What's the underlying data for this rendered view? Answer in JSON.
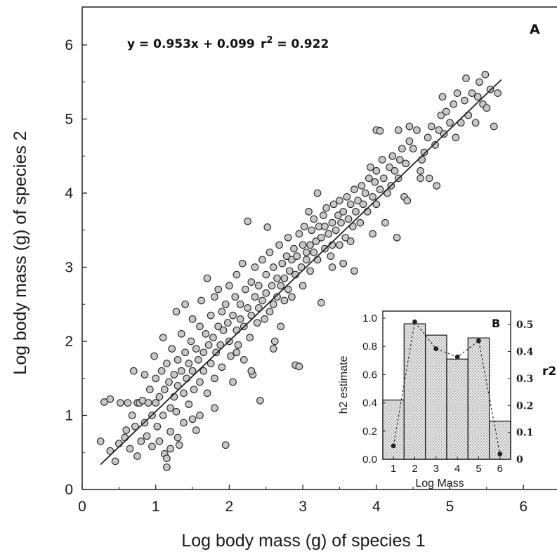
{
  "chart_data": [
    {
      "type": "scatter",
      "panel_label": "A",
      "equation": "y = 0.953x + 0.099",
      "r2_prefix": "r",
      "r2_superscript": "2",
      "r2_value": " = 0.922",
      "xlabel": "Log body mass (g) of species 1",
      "ylabel": "Log body mass (g) of species 2",
      "xlim": [
        0,
        6.5
      ],
      "ylim": [
        0,
        6.5
      ],
      "xticks": [
        0,
        1,
        2,
        3,
        4,
        5,
        6
      ],
      "yticks": [
        0,
        1,
        2,
        3,
        4,
        5,
        6
      ],
      "grid": false,
      "marker_color": "#c8c8c8",
      "marker_edge": "#222222",
      "line_color": "#222222",
      "fit": {
        "slope": 0.953,
        "intercept": 0.099,
        "x_range": [
          0.25,
          5.7
        ]
      },
      "points": [
        [
          0.25,
          0.65
        ],
        [
          0.3,
          1.18
        ],
        [
          0.38,
          0.52
        ],
        [
          0.38,
          1.22
        ],
        [
          0.45,
          0.38
        ],
        [
          0.5,
          0.62
        ],
        [
          0.52,
          1.17
        ],
        [
          0.58,
          0.7
        ],
        [
          0.6,
          0.8
        ],
        [
          0.62,
          1.17
        ],
        [
          0.65,
          0.55
        ],
        [
          0.68,
          1.0
        ],
        [
          0.7,
          1.6
        ],
        [
          0.72,
          0.85
        ],
        [
          0.75,
          1.17
        ],
        [
          0.75,
          0.45
        ],
        [
          0.78,
          1.17
        ],
        [
          0.8,
          0.65
        ],
        [
          0.82,
          1.2
        ],
        [
          0.85,
          0.9
        ],
        [
          0.85,
          1.55
        ],
        [
          0.88,
          0.72
        ],
        [
          0.9,
          1.17
        ],
        [
          0.92,
          1.35
        ],
        [
          0.95,
          1.0
        ],
        [
          0.95,
          0.58
        ],
        [
          0.98,
          1.8
        ],
        [
          1.0,
          1.17
        ],
        [
          1.0,
          1.5
        ],
        [
          1.02,
          0.85
        ],
        [
          1.05,
          1.25
        ],
        [
          1.05,
          0.65
        ],
        [
          1.08,
          1.6
        ],
        [
          1.1,
          2.05
        ],
        [
          1.1,
          1.0
        ],
        [
          1.12,
          1.35
        ],
        [
          1.12,
          0.48
        ],
        [
          1.15,
          1.7
        ],
        [
          1.15,
          0.3
        ],
        [
          1.18,
          1.45
        ],
        [
          1.2,
          1.1
        ],
        [
          1.2,
          0.78
        ],
        [
          1.22,
          1.9
        ],
        [
          1.25,
          1.55
        ],
        [
          1.25,
          1.25
        ],
        [
          1.28,
          2.4
        ],
        [
          1.28,
          1.05
        ],
        [
          1.3,
          1.75
        ],
        [
          1.3,
          1.4
        ],
        [
          1.32,
          0.6
        ],
        [
          1.35,
          1.6
        ],
        [
          1.35,
          2.1
        ],
        [
          1.38,
          1.3
        ],
        [
          1.38,
          0.9
        ],
        [
          1.4,
          1.85
        ],
        [
          1.4,
          2.5
        ],
        [
          1.42,
          1.5
        ],
        [
          1.45,
          1.7
        ],
        [
          1.45,
          1.15
        ],
        [
          1.48,
          2.0
        ],
        [
          1.5,
          1.6
        ],
        [
          1.5,
          2.3
        ],
        [
          1.52,
          1.35
        ],
        [
          1.55,
          1.9
        ],
        [
          1.55,
          0.8
        ],
        [
          1.58,
          1.75
        ],
        [
          1.6,
          2.2
        ],
        [
          1.6,
          1.45
        ],
        [
          1.62,
          2.55
        ],
        [
          1.65,
          1.85
        ],
        [
          1.65,
          1.6
        ],
        [
          1.68,
          2.1
        ],
        [
          1.7,
          2.85
        ],
        [
          1.7,
          1.3
        ],
        [
          1.72,
          1.95
        ],
        [
          1.75,
          2.35
        ],
        [
          1.75,
          1.7
        ],
        [
          1.78,
          2.05
        ],
        [
          1.8,
          2.6
        ],
        [
          1.8,
          1.5
        ],
        [
          1.82,
          1.85
        ],
        [
          1.85,
          2.2
        ],
        [
          1.85,
          2.7
        ],
        [
          1.88,
          1.95
        ],
        [
          1.9,
          2.4
        ],
        [
          1.9,
          1.65
        ],
        [
          1.92,
          2.15
        ],
        [
          1.95,
          0.6
        ],
        [
          1.95,
          2.5
        ],
        [
          1.98,
          2.25
        ],
        [
          2.0,
          2.0
        ],
        [
          2.0,
          2.75
        ],
        [
          2.02,
          1.8
        ],
        [
          2.05,
          2.35
        ],
        [
          2.05,
          1.45
        ],
        [
          2.08,
          2.6
        ],
        [
          2.1,
          2.15
        ],
        [
          2.1,
          2.9
        ],
        [
          2.12,
          1.95
        ],
        [
          2.15,
          2.5
        ],
        [
          2.15,
          2.3
        ],
        [
          2.18,
          3.05
        ],
        [
          2.2,
          2.2
        ],
        [
          2.2,
          1.75
        ],
        [
          2.22,
          2.7
        ],
        [
          2.25,
          2.45
        ],
        [
          2.25,
          3.62
        ],
        [
          2.28,
          2.05
        ],
        [
          2.3,
          2.8
        ],
        [
          2.3,
          2.35
        ],
        [
          2.32,
          1.55
        ],
        [
          2.35,
          2.6
        ],
        [
          2.35,
          3.0
        ],
        [
          2.38,
          2.25
        ],
        [
          2.4,
          2.75
        ],
        [
          2.4,
          2.45
        ],
        [
          2.42,
          1.2
        ],
        [
          2.45,
          3.1
        ],
        [
          2.45,
          2.55
        ],
        [
          2.48,
          2.3
        ],
        [
          2.5,
          2.9
        ],
        [
          2.5,
          2.65
        ],
        [
          2.52,
          3.54
        ],
        [
          2.55,
          2.4
        ],
        [
          2.55,
          3.2
        ],
        [
          2.58,
          2.75
        ],
        [
          2.6,
          2.5
        ],
        [
          2.6,
          3.0
        ],
        [
          2.62,
          2.0
        ],
        [
          2.65,
          2.85
        ],
        [
          2.65,
          2.6
        ],
        [
          2.68,
          3.3
        ],
        [
          2.7,
          2.75
        ],
        [
          2.72,
          3.05
        ],
        [
          2.75,
          2.55
        ],
        [
          2.75,
          2.85
        ],
        [
          2.78,
          3.15
        ],
        [
          2.8,
          2.7
        ],
        [
          2.8,
          3.4
        ],
        [
          2.82,
          2.95
        ],
        [
          2.85,
          3.1
        ],
        [
          2.85,
          2.6
        ],
        [
          2.88,
          3.25
        ],
        [
          2.9,
          1.68
        ],
        [
          2.9,
          2.9
        ],
        [
          2.92,
          3.15
        ],
        [
          2.95,
          3.45
        ],
        [
          2.95,
          1.66
        ],
        [
          2.98,
          3.0
        ],
        [
          3.0,
          3.3
        ],
        [
          3.0,
          2.75
        ],
        [
          3.02,
          3.55
        ],
        [
          3.05,
          3.1
        ],
        [
          3.05,
          3.2
        ],
        [
          3.08,
          3.75
        ],
        [
          3.1,
          3.3
        ],
        [
          3.1,
          2.95
        ],
        [
          3.12,
          3.5
        ],
        [
          3.15,
          3.2
        ],
        [
          3.15,
          3.65
        ],
        [
          3.18,
          3.35
        ],
        [
          3.2,
          4.0
        ],
        [
          3.2,
          3.1
        ],
        [
          3.22,
          3.55
        ],
        [
          3.25,
          2.52
        ],
        [
          3.25,
          3.4
        ],
        [
          3.28,
          3.7
        ],
        [
          3.3,
          3.25
        ],
        [
          3.3,
          3.55
        ],
        [
          3.32,
          3.8
        ],
        [
          3.35,
          3.45
        ],
        [
          3.38,
          3.15
        ],
        [
          3.4,
          3.6
        ],
        [
          3.4,
          3.3
        ],
        [
          3.42,
          3.85
        ],
        [
          3.45,
          3.5
        ],
        [
          3.48,
          3.7
        ],
        [
          3.5,
          3.3
        ],
        [
          3.5,
          3.9
        ],
        [
          3.52,
          3.6
        ],
        [
          3.55,
          3.75
        ],
        [
          3.58,
          3.4
        ],
        [
          3.6,
          3.95
        ],
        [
          3.62,
          3.65
        ],
        [
          3.65,
          3.85
        ],
        [
          3.68,
          3.55
        ],
        [
          3.7,
          4.05
        ],
        [
          3.72,
          3.75
        ],
        [
          3.75,
          3.9
        ],
        [
          3.78,
          3.6
        ],
        [
          3.8,
          4.1
        ],
        [
          3.82,
          3.85
        ],
        [
          3.85,
          4.0
        ],
        [
          3.88,
          3.75
        ],
        [
          3.9,
          4.2
        ],
        [
          3.92,
          4.35
        ],
        [
          3.95,
          3.95
        ],
        [
          3.98,
          4.15
        ],
        [
          4.0,
          3.85
        ],
        [
          4.0,
          4.3
        ],
        [
          4.05,
          4.05
        ],
        [
          4.08,
          4.45
        ],
        [
          4.1,
          4.2
        ],
        [
          4.12,
          3.6
        ],
        [
          4.15,
          4.0
        ],
        [
          4.18,
          4.35
        ],
        [
          4.2,
          4.1
        ],
        [
          4.22,
          4.5
        ],
        [
          4.25,
          4.3
        ],
        [
          4.28,
          3.4
        ],
        [
          4.3,
          4.2
        ],
        [
          4.32,
          4.45
        ],
        [
          4.35,
          4.6
        ],
        [
          4.38,
          3.95
        ],
        [
          4.4,
          4.4
        ],
        [
          4.42,
          3.9
        ],
        [
          4.45,
          4.7
        ],
        [
          4.5,
          4.6
        ],
        [
          4.55,
          4.85
        ],
        [
          4.6,
          4.3
        ],
        [
          4.62,
          4.45
        ],
        [
          4.65,
          4.55
        ],
        [
          4.7,
          4.75
        ],
        [
          4.72,
          4.2
        ],
        [
          4.75,
          4.9
        ],
        [
          4.8,
          4.65
        ],
        [
          4.82,
          4.1
        ],
        [
          4.85,
          4.85
        ],
        [
          4.88,
          5.05
        ],
        [
          4.9,
          5.3
        ],
        [
          4.92,
          4.8
        ],
        [
          4.95,
          5.1
        ],
        [
          5.0,
          4.95
        ],
        [
          5.05,
          5.2
        ],
        [
          5.08,
          4.75
        ],
        [
          5.1,
          5.35
        ],
        [
          5.15,
          4.95
        ],
        [
          5.2,
          5.25
        ],
        [
          5.22,
          5.55
        ],
        [
          5.25,
          5.05
        ],
        [
          5.3,
          5.35
        ],
        [
          5.35,
          4.95
        ],
        [
          5.38,
          5.3
        ],
        [
          5.4,
          5.5
        ],
        [
          5.45,
          5.2
        ],
        [
          5.48,
          5.6
        ],
        [
          5.5,
          5.15
        ],
        [
          5.55,
          5.4
        ],
        [
          5.6,
          4.9
        ],
        [
          5.65,
          5.35
        ],
        [
          4.0,
          4.85
        ],
        [
          4.05,
          4.84
        ],
        [
          4.3,
          4.85
        ],
        [
          4.45,
          4.9
        ],
        [
          4.6,
          4.2
        ],
        [
          3.55,
          3.05
        ],
        [
          3.65,
          3.35
        ],
        [
          3.95,
          3.45
        ],
        [
          3.7,
          2.95
        ],
        [
          3.4,
          3.0
        ],
        [
          2.1,
          1.85
        ],
        [
          2.3,
          1.6
        ],
        [
          2.6,
          1.9
        ],
        [
          2.7,
          2.2
        ],
        [
          1.6,
          1.0
        ],
        [
          1.8,
          1.1
        ],
        [
          1.5,
          0.95
        ],
        [
          1.3,
          0.7
        ],
        [
          1.15,
          0.42
        ],
        [
          1.2,
          0.55
        ]
      ]
    },
    {
      "type": "bar",
      "panel_label": "B",
      "categories": [
        "1",
        "2",
        "3",
        "4",
        "5",
        "6"
      ],
      "xlabel": "Log Mass",
      "ylabel_left": "h2 estimate",
      "ylabel_right": "r2",
      "ylim_left": [
        0,
        1.05
      ],
      "ylim_right": [
        0,
        0.55
      ],
      "yticks_left": [
        "0.0",
        "0.2",
        "0.4",
        "0.6",
        "0.8",
        "1.0"
      ],
      "yticks_right": [
        "0",
        "0.1",
        "0.2",
        "0.3",
        "0.4",
        "0.5"
      ],
      "bar_values_h2": [
        0.42,
        0.96,
        0.88,
        0.71,
        0.86,
        0.27
      ],
      "line_values_r2": [
        0.05,
        0.51,
        0.41,
        0.38,
        0.44,
        0.02
      ]
    }
  ]
}
